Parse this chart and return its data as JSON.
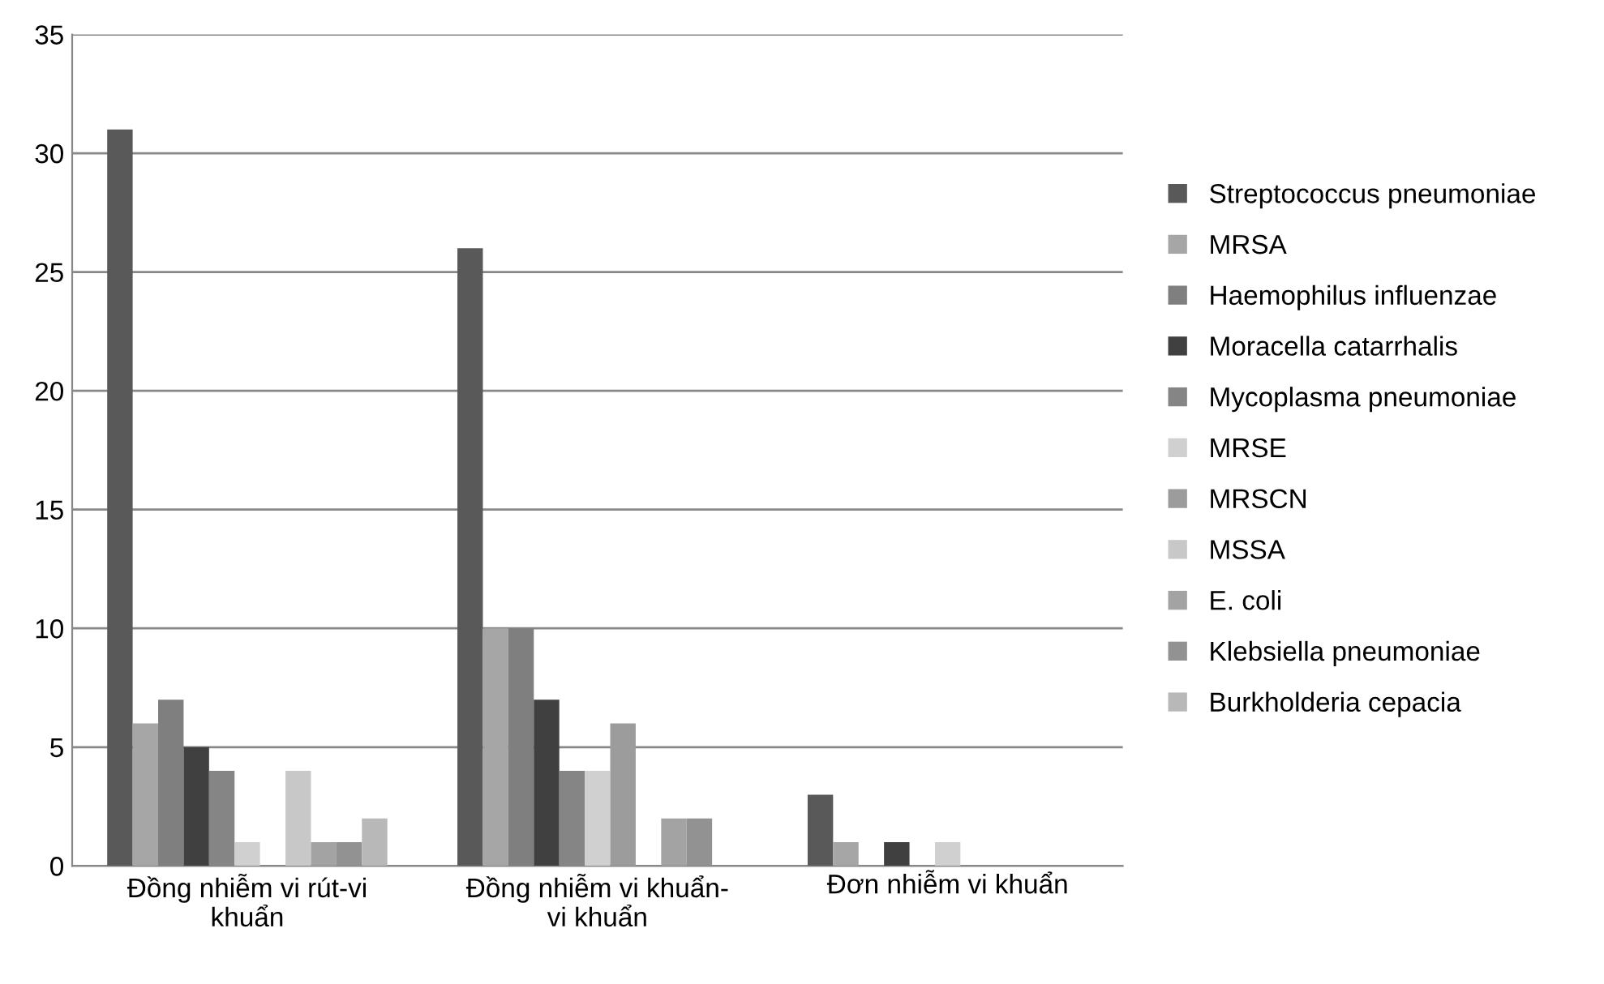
{
  "chart_data": {
    "type": "bar",
    "categories": [
      "Đồng nhiễm vi rút-vi khuẩn",
      "Đồng nhiễm vi khuẩn-vi khuẩn",
      "Đơn nhiễm vi khuẩn"
    ],
    "series": [
      {
        "name": "Streptococcus pneumoniae",
        "color": "#595959",
        "values": [
          31,
          26,
          3
        ]
      },
      {
        "name": "MRSA",
        "color": "#a6a6a6",
        "values": [
          6,
          10,
          1
        ]
      },
      {
        "name": "Haemophilus influenzae",
        "color": "#7f7f7f",
        "values": [
          7,
          10,
          0
        ]
      },
      {
        "name": "Moracella catarrhalis",
        "color": "#404040",
        "values": [
          5,
          7,
          1
        ]
      },
      {
        "name": "Mycoplasma pneumoniae",
        "color": "#858585",
        "values": [
          4,
          4,
          0
        ]
      },
      {
        "name": "MRSE",
        "color": "#d0d0d0",
        "values": [
          1,
          4,
          1
        ]
      },
      {
        "name": "MRSCN",
        "color": "#9c9c9c",
        "values": [
          0,
          6,
          0
        ]
      },
      {
        "name": "MSSA",
        "color": "#c8c8c8",
        "values": [
          4,
          0,
          0
        ]
      },
      {
        "name": "E. coli",
        "color": "#a3a3a3",
        "values": [
          1,
          2,
          0
        ]
      },
      {
        "name": "Klebsiella pneumoniae",
        "color": "#929292",
        "values": [
          1,
          2,
          0
        ]
      },
      {
        "name": "Burkholderia cepacia",
        "color": "#b8b8b8",
        "values": [
          2,
          0,
          0
        ]
      }
    ],
    "ylim": [
      0,
      35
    ],
    "yticks": [
      0,
      5,
      10,
      15,
      20,
      25,
      30,
      35
    ],
    "grid": "y",
    "legend": "right"
  }
}
